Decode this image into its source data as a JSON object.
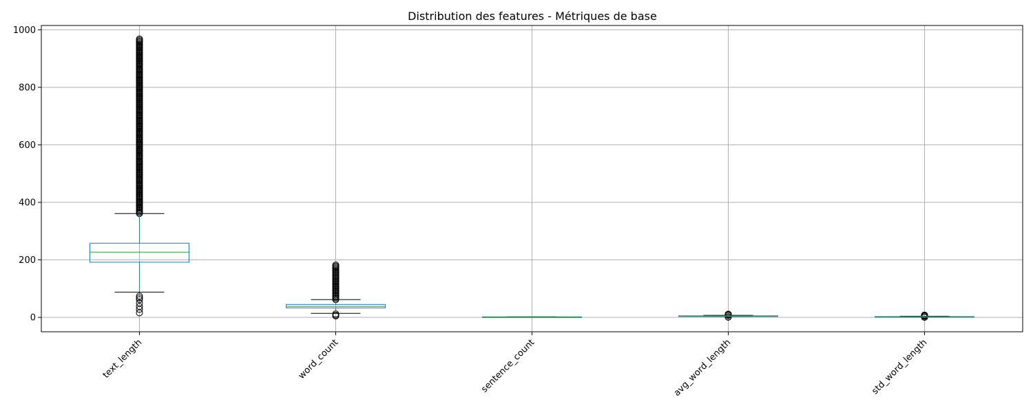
{
  "chart_data": {
    "type": "boxplot",
    "title": "Distribution des features - Métriques de base",
    "xlabel": "",
    "ylabel": "",
    "ylim": [
      -50,
      1015
    ],
    "yticks": [
      0,
      200,
      400,
      600,
      800,
      1000
    ],
    "grid": true,
    "colors": {
      "box": "#1f77b4",
      "median": "#2ca02c",
      "whisker_cap": "#000000",
      "grid": "#b0b0b0"
    },
    "categories": [
      "text_length",
      "word_count",
      "sentence_count",
      "avg_word_length",
      "std_word_length"
    ],
    "series": [
      {
        "category": "text_length",
        "q1": 192,
        "median": 227,
        "q3": 258,
        "whisker_low": 88,
        "whisker_high": 361,
        "outliers_high_range": [
          361,
          968
        ],
        "outliers_low": [
          74,
          68,
          62,
          50,
          38,
          28,
          16
        ]
      },
      {
        "category": "word_count",
        "q1": 33,
        "median": 38,
        "q3": 45,
        "whisker_low": 14,
        "whisker_high": 62,
        "outliers_high_range": [
          62,
          182
        ],
        "outliers_low": [
          12,
          8,
          5
        ]
      },
      {
        "category": "sentence_count",
        "q1": 1,
        "median": 1,
        "q3": 2,
        "whisker_low": 1,
        "whisker_high": 2,
        "outliers_high_range": [],
        "outliers_low": []
      },
      {
        "category": "avg_word_length",
        "q1": 4.5,
        "median": 5,
        "q3": 5.6,
        "whisker_low": 3.5,
        "whisker_high": 7,
        "outliers_high_range": [
          7,
          11
        ],
        "outliers_low": [
          2,
          1
        ]
      },
      {
        "category": "std_word_length",
        "q1": 2.2,
        "median": 2.6,
        "q3": 3,
        "whisker_low": 1.2,
        "whisker_high": 4.2,
        "outliers_high_range": [
          4.2,
          8
        ],
        "outliers_low": [
          0.8,
          0.3
        ]
      }
    ]
  }
}
